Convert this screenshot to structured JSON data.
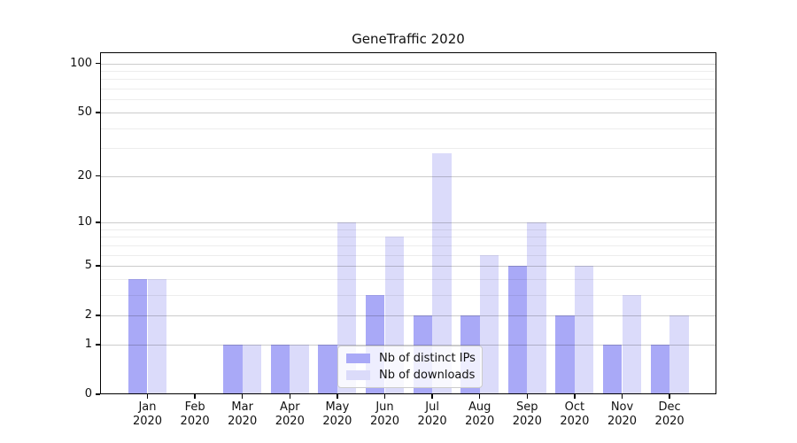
{
  "chart_data": {
    "type": "bar",
    "title": "GeneTraffic 2020",
    "x_categories": [
      "Jan",
      "Feb",
      "Mar",
      "Apr",
      "May",
      "Jun",
      "Jul",
      "Aug",
      "Sep",
      "Oct",
      "Nov",
      "Dec"
    ],
    "x_year": "2020",
    "series": [
      {
        "name": "Nb of distinct IPs",
        "color": "#a9a9f7",
        "values": [
          4,
          0,
          1,
          1,
          1,
          3,
          2,
          2,
          5,
          2,
          1,
          1
        ]
      },
      {
        "name": "Nb of downloads",
        "color": "#dbdbfa",
        "values": [
          4,
          0,
          1,
          1,
          10,
          8,
          28,
          6,
          10,
          5,
          3,
          2
        ]
      }
    ],
    "y_axis": {
      "scale": "symlog",
      "major_ticks": [
        0,
        1,
        2,
        5,
        10,
        20,
        50,
        100
      ],
      "minor_gridlines": [
        3,
        4,
        6,
        7,
        8,
        9,
        30,
        40,
        60,
        70,
        80,
        90
      ],
      "axis_top_value": 117
    },
    "legend": {
      "entries": [
        "Nb of distinct IPs",
        "Nb of downloads"
      ],
      "position": "lower center"
    },
    "grid": "horizontal",
    "colors": {
      "major_grid": "rgba(0,0,0,0.20)",
      "minor_grid": "rgba(0,0,0,0.07)",
      "axis": "#000000",
      "text": "#111111",
      "background": "#ffffff"
    }
  }
}
